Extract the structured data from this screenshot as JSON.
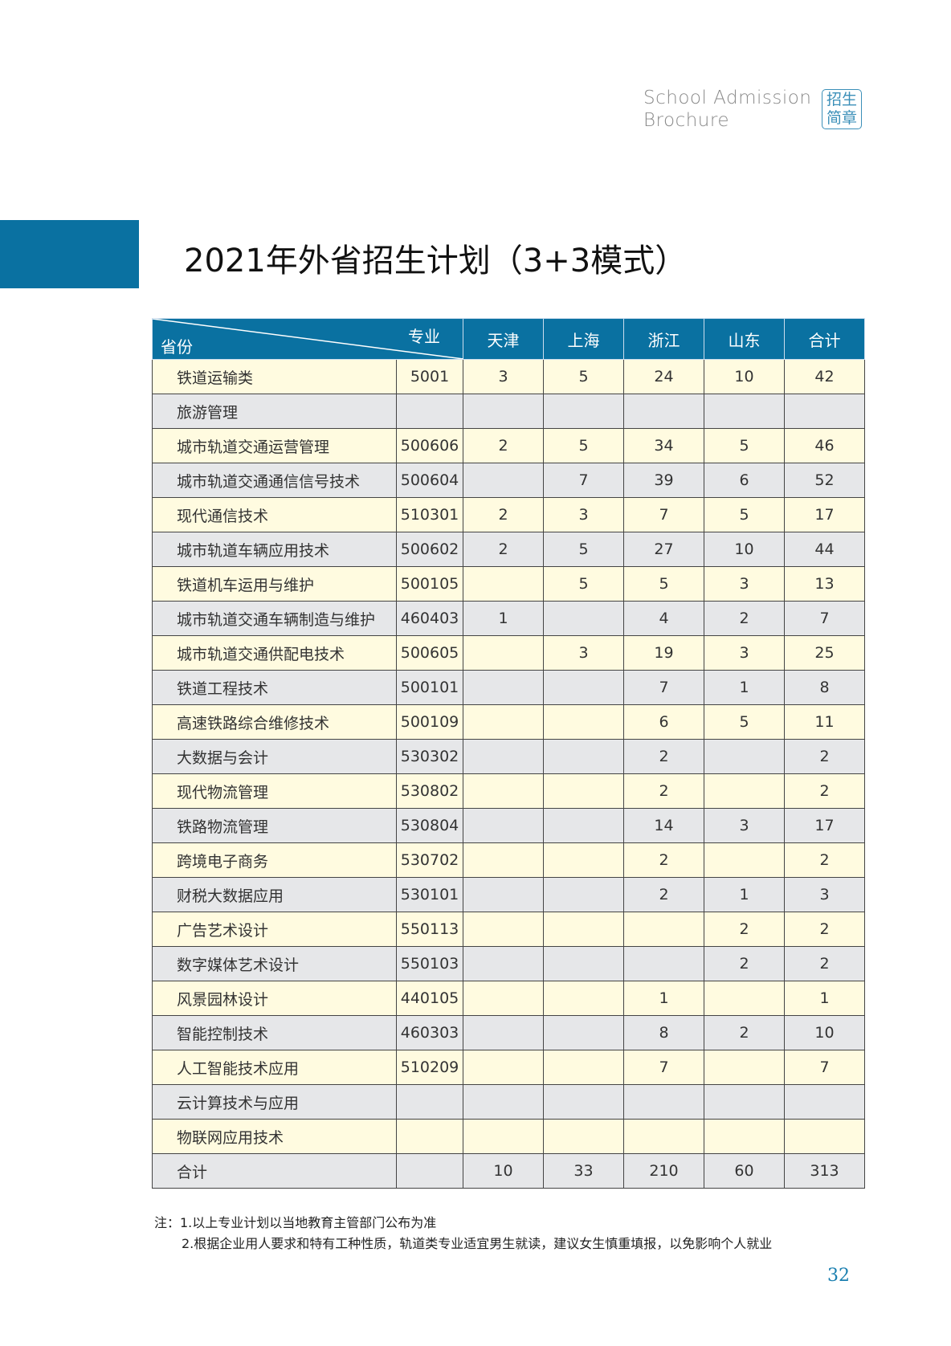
{
  "header": {
    "line1": "School Admission",
    "line2": "Brochure",
    "seal": [
      "招生",
      "简章"
    ]
  },
  "title": "2021年外省招生计划（3+3模式）",
  "table": {
    "corner_top": "专业",
    "corner_bottom": "省份",
    "columns": [
      "天津",
      "上海",
      "浙江",
      "山东",
      "合计"
    ],
    "rows": [
      [
        "铁道运输类",
        "5001",
        "3",
        "5",
        "24",
        "10",
        "42"
      ],
      [
        "旅游管理",
        "",
        "",
        "",
        "",
        "",
        ""
      ],
      [
        "城市轨道交通运营管理",
        "500606",
        "2",
        "5",
        "34",
        "5",
        "46"
      ],
      [
        "城市轨道交通通信信号技术",
        "500604",
        "",
        "7",
        "39",
        "6",
        "52"
      ],
      [
        "现代通信技术",
        "510301",
        "2",
        "3",
        "7",
        "5",
        "17"
      ],
      [
        "城市轨道车辆应用技术",
        "500602",
        "2",
        "5",
        "27",
        "10",
        "44"
      ],
      [
        "铁道机车运用与维护",
        "500105",
        "",
        "5",
        "5",
        "3",
        "13"
      ],
      [
        "城市轨道交通车辆制造与维护",
        "460403",
        "1",
        "",
        "4",
        "2",
        "7"
      ],
      [
        "城市轨道交通供配电技术",
        "500605",
        "",
        "3",
        "19",
        "3",
        "25"
      ],
      [
        "铁道工程技术",
        "500101",
        "",
        "",
        "7",
        "1",
        "8"
      ],
      [
        "高速铁路综合维修技术",
        "500109",
        "",
        "",
        "6",
        "5",
        "11"
      ],
      [
        "大数据与会计",
        "530302",
        "",
        "",
        "2",
        "",
        "2"
      ],
      [
        "现代物流管理",
        "530802",
        "",
        "",
        "2",
        "",
        "2"
      ],
      [
        "铁路物流管理",
        "530804",
        "",
        "",
        "14",
        "3",
        "17"
      ],
      [
        "跨境电子商务",
        "530702",
        "",
        "",
        "2",
        "",
        "2"
      ],
      [
        "财税大数据应用",
        "530101",
        "",
        "",
        "2",
        "1",
        "3"
      ],
      [
        "广告艺术设计",
        "550113",
        "",
        "",
        "",
        "2",
        "2"
      ],
      [
        "数字媒体艺术设计",
        "550103",
        "",
        "",
        "",
        "2",
        "2"
      ],
      [
        "风景园林设计",
        "440105",
        "",
        "",
        "1",
        "",
        "1"
      ],
      [
        "智能控制技术",
        "460303",
        "",
        "",
        "8",
        "2",
        "10"
      ],
      [
        "人工智能技术应用",
        "510209",
        "",
        "",
        "7",
        "",
        "7"
      ],
      [
        "云计算技术与应用",
        "",
        "",
        "",
        "",
        "",
        ""
      ],
      [
        "物联网应用技术",
        "",
        "",
        "",
        "",
        "",
        ""
      ],
      [
        "合计",
        "",
        "10",
        "33",
        "210",
        "60",
        "313"
      ]
    ]
  },
  "notes": [
    "注：1.以上专业计划以当地教育主管部门公布为准",
    "2.根据企业用人要求和特有工种性质，轨道类专业适宜男生就读，建议女生慎重填报，以免影响个人就业"
  ],
  "page_number": "32",
  "colors": {
    "accent": "#0a71a1",
    "row_yellow": "#fffbe0",
    "row_gray": "#e6e7e9"
  }
}
